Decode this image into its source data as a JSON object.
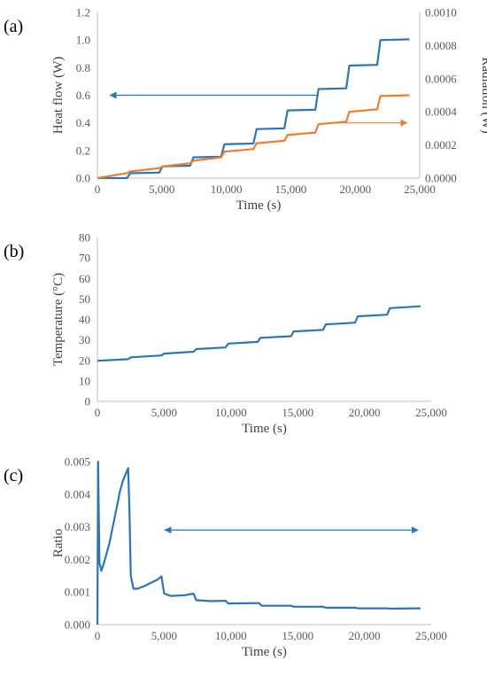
{
  "chart_data": [
    {
      "type": "line",
      "panel_label": "(a)",
      "xlabel": "Time (s)",
      "ylabel": "Heat flow (W)",
      "y2label": "Radiation (W)",
      "xlim": [
        0,
        25000
      ],
      "ylim": [
        0,
        1.2
      ],
      "y2lim": [
        0,
        0.001
      ],
      "x_ticks": [
        "0",
        "5,000",
        "10,000",
        "15,000",
        "20,000",
        "25,000"
      ],
      "y_ticks": [
        "0.0",
        "0.2",
        "0.4",
        "0.6",
        "0.8",
        "1.0",
        "1.2"
      ],
      "y2_ticks": [
        "0.0000",
        "0.0002",
        "0.0004",
        "0.0006",
        "0.0008",
        "0.0010"
      ],
      "grid": false,
      "series": [
        {
          "axis": "left",
          "color": "#2e75b6",
          "points": [
            [
              0,
              0.0
            ],
            [
              2300,
              0.0
            ],
            [
              2550,
              0.035
            ],
            [
              4800,
              0.04
            ],
            [
              5050,
              0.085
            ],
            [
              7200,
              0.09
            ],
            [
              7450,
              0.15
            ],
            [
              9600,
              0.155
            ],
            [
              9850,
              0.245
            ],
            [
              12100,
              0.25
            ],
            [
              12350,
              0.355
            ],
            [
              14500,
              0.36
            ],
            [
              14750,
              0.49
            ],
            [
              16900,
              0.495
            ],
            [
              17150,
              0.645
            ],
            [
              19300,
              0.65
            ],
            [
              19550,
              0.815
            ],
            [
              21700,
              0.82
            ],
            [
              21950,
              1.0
            ],
            [
              24200,
              1.005
            ]
          ]
        },
        {
          "axis": "right",
          "color": "#ed7d31",
          "points": [
            [
              0,
              0.0
            ],
            [
              2300,
              3e-05
            ],
            [
              2550,
              4e-05
            ],
            [
              4800,
              6e-05
            ],
            [
              5050,
              7e-05
            ],
            [
              7200,
              9e-05
            ],
            [
              7450,
              0.000105
            ],
            [
              9600,
              0.000125
            ],
            [
              9850,
              0.00016
            ],
            [
              12100,
              0.000175
            ],
            [
              12350,
              0.00021
            ],
            [
              14500,
              0.000225
            ],
            [
              14750,
              0.00026
            ],
            [
              16900,
              0.000275
            ],
            [
              17150,
              0.000325
            ],
            [
              19300,
              0.00034
            ],
            [
              19550,
              0.0004
            ],
            [
              21700,
              0.000415
            ],
            [
              21950,
              0.000495
            ],
            [
              24200,
              0.0005
            ]
          ]
        }
      ],
      "arrows": [
        {
          "color": "#2e75b6",
          "x_from": 17000,
          "x_to": 1000,
          "y": 0.6
        },
        {
          "color": "#ed7d31",
          "x_from": 18000,
          "x_to": 24000,
          "y": 0.4
        }
      ]
    },
    {
      "type": "line",
      "panel_label": "(b)",
      "xlabel": "Time (s)",
      "ylabel": "Temperature (°C)",
      "xlim": [
        0,
        25000
      ],
      "ylim": [
        0,
        80
      ],
      "x_ticks": [
        "0",
        "5,000",
        "10,000",
        "15,000",
        "20,000",
        "25,000"
      ],
      "y_ticks": [
        "0",
        "10",
        "20",
        "30",
        "40",
        "50",
        "60",
        "70",
        "80"
      ],
      "grid": false,
      "series": [
        {
          "color": "#2e75b6",
          "points": [
            [
              0,
              19.8
            ],
            [
              2300,
              20.6
            ],
            [
              2500,
              21.5
            ],
            [
              4800,
              22.4
            ],
            [
              5000,
              23.3
            ],
            [
              7200,
              24.2
            ],
            [
              7400,
              25.5
            ],
            [
              9600,
              26.3
            ],
            [
              9800,
              28.2
            ],
            [
              12000,
              29.0
            ],
            [
              12200,
              31.0
            ],
            [
              14500,
              31.8
            ],
            [
              14700,
              34.1
            ],
            [
              16900,
              34.9
            ],
            [
              17100,
              37.6
            ],
            [
              19300,
              38.4
            ],
            [
              19500,
              41.5
            ],
            [
              21700,
              42.3
            ],
            [
              21900,
              45.5
            ],
            [
              24200,
              46.4
            ]
          ]
        }
      ]
    },
    {
      "type": "line",
      "panel_label": "(c)",
      "xlabel": "Time (s)",
      "ylabel": "Ratio",
      "xlim": [
        0,
        25000
      ],
      "ylim": [
        0,
        0.005
      ],
      "x_ticks": [
        "0",
        "5,000",
        "10,000",
        "15,000",
        "20,000",
        "25,000"
      ],
      "y_ticks": [
        "0.000",
        "0.001",
        "0.002",
        "0.003",
        "0.004",
        "0.005"
      ],
      "grid": false,
      "series": [
        {
          "color": "#2e75b6",
          "points": [
            [
              0,
              0.0
            ],
            [
              50,
              0.005
            ],
            [
              150,
              0.0019
            ],
            [
              300,
              0.00165
            ],
            [
              500,
              0.0019
            ],
            [
              700,
              0.0022
            ],
            [
              900,
              0.0025
            ],
            [
              1100,
              0.0029
            ],
            [
              1300,
              0.0033
            ],
            [
              1500,
              0.0037
            ],
            [
              1700,
              0.0041
            ],
            [
              1900,
              0.0044
            ],
            [
              2100,
              0.0046
            ],
            [
              2300,
              0.0048
            ],
            [
              2400,
              0.0035
            ],
            [
              2500,
              0.0015
            ],
            [
              2700,
              0.0011
            ],
            [
              3000,
              0.0011
            ],
            [
              3500,
              0.00118
            ],
            [
              4000,
              0.00128
            ],
            [
              4500,
              0.00138
            ],
            [
              4800,
              0.00148
            ],
            [
              5000,
              0.00095
            ],
            [
              5500,
              0.00088
            ],
            [
              6500,
              0.0009
            ],
            [
              7200,
              0.00095
            ],
            [
              7400,
              0.00075
            ],
            [
              8500,
              0.00072
            ],
            [
              9600,
              0.00073
            ],
            [
              9800,
              0.00065
            ],
            [
              12100,
              0.00066
            ],
            [
              12300,
              0.00058
            ],
            [
              14500,
              0.00058
            ],
            [
              14700,
              0.00055
            ],
            [
              16900,
              0.00055
            ],
            [
              17100,
              0.00052
            ],
            [
              19300,
              0.00052
            ],
            [
              19500,
              0.0005
            ],
            [
              21700,
              0.0005
            ],
            [
              21900,
              0.00049
            ],
            [
              24200,
              0.0005
            ]
          ]
        }
      ],
      "arrows": [
        {
          "color": "#2e75b6",
          "x_from": 5000,
          "x_to": 24000,
          "y": 0.0029,
          "double": true
        }
      ]
    }
  ]
}
